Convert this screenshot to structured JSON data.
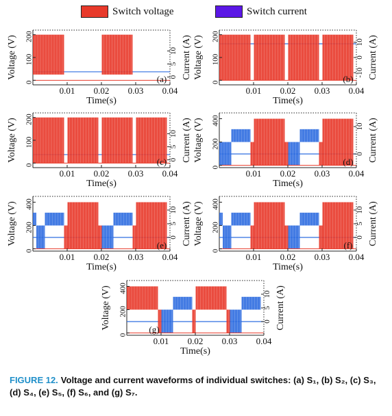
{
  "legend": {
    "voltage_label": "Switch voltage",
    "current_label": "Switch current"
  },
  "colors": {
    "voltage": "#e8392a",
    "current": "#2f6de0",
    "legend_current": "#5b17e6",
    "caption_label": "#1f8fc9"
  },
  "caption": {
    "label": "FIGURE 12.",
    "text": "Voltage and current waveforms of individual switches: (a) S₁, (b) S₂, (c) S₃, (d) S₄, (e) S₅, (f) S₆, and (g) S₇."
  },
  "chart_data": [
    {
      "id": "a",
      "panel_label": "(a)",
      "type": "line",
      "xlabel": "Time(s)",
      "ylabel_left": "Voltage (V)",
      "ylabel_right": "Current (A)",
      "xlim": [
        0,
        0.04
      ],
      "xticks": [
        "0.01",
        "0.02",
        "0.03",
        "0.04"
      ],
      "ylim_left": [
        -20,
        220
      ],
      "yticks_left": [
        "0",
        "100",
        "200"
      ],
      "ylim_right": [
        -3,
        18
      ],
      "yticks_right": [
        "0",
        "5",
        "10"
      ],
      "series": [
        {
          "quantity": "voltage",
          "segments": [
            [
              0.0,
              0.0091,
              200,
              25,
              "v"
            ],
            [
              0.0101,
              0.0191,
              200,
              0,
              "g"
            ],
            [
              0.0201,
              0.0291,
              200,
              25,
              "v"
            ],
            [
              0.0301,
              0.0391,
              200,
              0,
              "g"
            ]
          ],
          "base": 0
        },
        {
          "quantity": "current",
          "segments": [
            [
              0.0,
              0.0091,
              12.5,
              2,
              "h"
            ],
            [
              0.0101,
              0.0191,
              12.5,
              0,
              "g"
            ],
            [
              0.0201,
              0.0291,
              12.5,
              2,
              "h"
            ],
            [
              0.0301,
              0.0391,
              12.5,
              0,
              "g"
            ]
          ],
          "base": 2
        }
      ]
    },
    {
      "id": "b",
      "panel_label": "(b)",
      "type": "line",
      "xlabel": "Time(s)",
      "ylabel_left": "Voltage (V)",
      "ylabel_right": "Current (A)",
      "xlim": [
        0,
        0.04
      ],
      "xticks": [
        "0.01",
        "0.02",
        "0.03",
        "0.04"
      ],
      "ylim_left": [
        -20,
        220
      ],
      "yticks_left": [
        "0",
        "100",
        "200"
      ],
      "ylim_right": [
        -18,
        18
      ],
      "yticks_right": [
        "-10",
        "0",
        "10"
      ],
      "series": [
        {
          "quantity": "voltage",
          "segments": [
            [
              0.0,
              0.0091,
              200,
              0,
              "v"
            ],
            [
              0.0101,
              0.0191,
              200,
              0,
              "v"
            ],
            [
              0.0201,
              0.0291,
              200,
              0,
              "v"
            ],
            [
              0.0301,
              0.0391,
              200,
              0,
              "v"
            ]
          ],
          "base": 0
        },
        {
          "quantity": "current",
          "segments": [],
          "base": 9
        }
      ]
    },
    {
      "id": "c",
      "panel_label": "(c)",
      "type": "line",
      "xlabel": "Time(s)",
      "ylabel_left": "Voltage (V)",
      "ylabel_right": "Current (A)",
      "xlim": [
        0,
        0.04
      ],
      "xticks": [
        "0.01",
        "0.02",
        "0.03",
        "0.04"
      ],
      "ylim_left": [
        -20,
        220
      ],
      "yticks_left": [
        "0",
        "100",
        "200"
      ],
      "ylim_right": [
        -3,
        18
      ],
      "yticks_right": [
        "0",
        "5",
        "10"
      ],
      "series": [
        {
          "quantity": "voltage",
          "segments": [
            [
              0.0,
              0.0091,
              200,
              0,
              "v"
            ],
            [
              0.0101,
              0.0191,
              200,
              0,
              "v"
            ],
            [
              0.0201,
              0.0291,
              200,
              0,
              "v"
            ],
            [
              0.0301,
              0.0391,
              200,
              0,
              "v"
            ]
          ],
          "base": 0
        },
        {
          "quantity": "current",
          "segments": [],
          "base": 2
        }
      ]
    },
    {
      "id": "d",
      "panel_label": "(d)",
      "type": "line",
      "xlabel": "Time(s)",
      "ylabel_left": "Voltage (V)",
      "ylabel_right": "Current (A)",
      "xlim": [
        0,
        0.04
      ],
      "xticks": [
        "0.01",
        "0.02",
        "0.03",
        "0.04"
      ],
      "ylim_left": [
        -20,
        450
      ],
      "yticks_left": [
        "0",
        "200",
        "400"
      ],
      "ylim_right": [
        -5,
        15
      ],
      "yticks_right": [
        "0",
        "10"
      ],
      "series": [
        {
          "quantity": "voltage",
          "segments": [
            [
              0.0,
              0.0035,
              200,
              0,
              "b"
            ],
            [
              0.0035,
              0.0091,
              310,
              200,
              "b"
            ],
            [
              0.0091,
              0.0101,
              200,
              0,
              "v"
            ],
            [
              0.0101,
              0.0191,
              400,
              0,
              "v"
            ],
            [
              0.0191,
              0.0201,
              200,
              0,
              "v"
            ],
            [
              0.0201,
              0.0235,
              200,
              0,
              "b"
            ],
            [
              0.0235,
              0.0291,
              310,
              200,
              "b"
            ],
            [
              0.0291,
              0.0301,
              200,
              0,
              "v"
            ],
            [
              0.0301,
              0.0391,
              400,
              0,
              "v"
            ]
          ],
          "base": 0
        },
        {
          "quantity": "current",
          "segments": [],
          "base": 0
        }
      ]
    },
    {
      "id": "e",
      "panel_label": "(e)",
      "type": "line",
      "xlabel": "Time(s)",
      "ylabel_left": "Voltage (V)",
      "ylabel_right": "Current (A)",
      "xlim": [
        0,
        0.04
      ],
      "xticks": [
        "0.01",
        "0.02",
        "0.03",
        "0.04"
      ],
      "ylim_left": [
        -20,
        450
      ],
      "yticks_left": [
        "0",
        "200",
        "400"
      ],
      "ylim_right": [
        -5,
        15
      ],
      "yticks_right": [
        "0",
        "5",
        "10"
      ],
      "series": [
        {
          "quantity": "voltage",
          "segments": [
            [
              0.0,
              0.001,
              310,
              200,
              "b"
            ],
            [
              0.001,
              0.0035,
              200,
              0,
              "b"
            ],
            [
              0.0035,
              0.0091,
              310,
              200,
              "b"
            ],
            [
              0.0091,
              0.0101,
              200,
              0,
              "v"
            ],
            [
              0.0101,
              0.0191,
              400,
              0,
              "v"
            ],
            [
              0.0191,
              0.0201,
              200,
              0,
              "v"
            ],
            [
              0.0201,
              0.0235,
              200,
              0,
              "b"
            ],
            [
              0.0235,
              0.0291,
              310,
              200,
              "b"
            ],
            [
              0.0291,
              0.0301,
              200,
              0,
              "v"
            ],
            [
              0.0301,
              0.0391,
              400,
              0,
              "v"
            ]
          ],
          "base": 0
        },
        {
          "quantity": "current",
          "segments": [],
          "base": 0
        }
      ]
    },
    {
      "id": "f",
      "panel_label": "(f)",
      "type": "line",
      "xlabel": "Time(s)",
      "ylabel_left": "Voltage (V)",
      "ylabel_right": "Current (A)",
      "xlim": [
        0,
        0.04
      ],
      "xticks": [
        "0.01",
        "0.02",
        "0.03",
        "0.04"
      ],
      "ylim_left": [
        -20,
        450
      ],
      "yticks_left": [
        "0",
        "200",
        "400"
      ],
      "ylim_right": [
        -5,
        15
      ],
      "yticks_right": [
        "0",
        "5",
        "10"
      ],
      "series": [
        {
          "quantity": "voltage",
          "segments": [
            [
              0.0,
              0.001,
              310,
              200,
              "b"
            ],
            [
              0.001,
              0.0035,
              200,
              0,
              "b"
            ],
            [
              0.0035,
              0.0091,
              310,
              200,
              "b"
            ],
            [
              0.0091,
              0.0101,
              200,
              0,
              "v"
            ],
            [
              0.0101,
              0.0191,
              400,
              0,
              "v"
            ],
            [
              0.0191,
              0.0201,
              200,
              0,
              "v"
            ],
            [
              0.0201,
              0.0235,
              200,
              0,
              "b"
            ],
            [
              0.0235,
              0.0291,
              310,
              200,
              "b"
            ],
            [
              0.0291,
              0.0301,
              200,
              0,
              "v"
            ],
            [
              0.0301,
              0.0391,
              400,
              0,
              "v"
            ]
          ],
          "base": 0
        },
        {
          "quantity": "current",
          "segments": [],
          "base": 0
        }
      ]
    },
    {
      "id": "g",
      "panel_label": "(g)",
      "type": "line",
      "xlabel": "Time(s)",
      "ylabel_left": "Voltage (V)",
      "ylabel_right": "Current (A)",
      "xlim": [
        0,
        0.04
      ],
      "xticks": [
        "0.01",
        "0.02",
        "0.03",
        "0.04"
      ],
      "ylim_left": [
        -20,
        450
      ],
      "yticks_left": [
        "0",
        "200",
        "400"
      ],
      "ylim_right": [
        -5,
        15
      ],
      "yticks_right": [
        "0",
        "5",
        "10"
      ],
      "series": [
        {
          "quantity": "voltage",
          "segments": [
            [
              0.0,
              0.0091,
              400,
              200,
              "v"
            ],
            [
              0.0091,
              0.0101,
              200,
              0,
              "v"
            ],
            [
              0.0101,
              0.0135,
              200,
              0,
              "b"
            ],
            [
              0.0135,
              0.0191,
              310,
              200,
              "b"
            ],
            [
              0.0191,
              0.0201,
              200,
              0,
              "v"
            ],
            [
              0.0201,
              0.0291,
              400,
              200,
              "v"
            ],
            [
              0.0291,
              0.0301,
              200,
              0,
              "v"
            ],
            [
              0.0301,
              0.0335,
              200,
              0,
              "b"
            ],
            [
              0.0335,
              0.0391,
              310,
              200,
              "b"
            ]
          ],
          "base": 0
        },
        {
          "quantity": "current",
          "segments": [],
          "base": 0
        }
      ]
    }
  ]
}
